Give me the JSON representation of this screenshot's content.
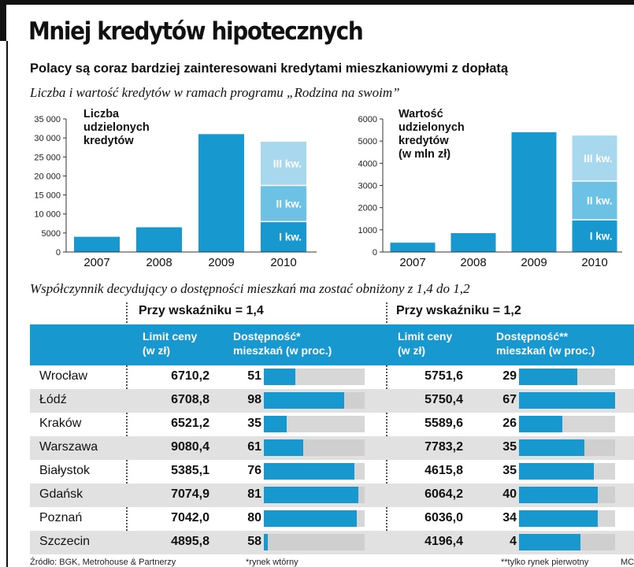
{
  "title": "Mniej kredytów hipotecznych",
  "subtitle": "Polacy są coraz bardziej zainteresowani kredytami mieszkaniowymi z dopłatą",
  "charts_heading": "Liczba i wartość kredytów w ramach programu „Rodzina na swoim”",
  "chart_data": [
    {
      "type": "bar",
      "label_lines": [
        "Liczba",
        "udzielonych",
        "kredytów"
      ],
      "categories": [
        "2007",
        "2008",
        "2009",
        "2010"
      ],
      "values": [
        4000,
        6500,
        31000,
        29000
      ],
      "stack_2010": {
        "segments": [
          {
            "name": "I kw.",
            "value": 8000
          },
          {
            "name": "II kw.",
            "value": 9500
          },
          {
            "name": "III kw.",
            "value": 11500
          }
        ]
      },
      "ylim": [
        0,
        35000
      ],
      "yticks": [
        0,
        5000,
        10000,
        15000,
        20000,
        25000,
        30000,
        35000
      ],
      "ytick_labels": [
        "0",
        "5000",
        "10 000",
        "15 000",
        "20 000",
        "25 000",
        "30 000",
        "35 000"
      ]
    },
    {
      "type": "bar",
      "label_lines": [
        "Wartość",
        "udzielonych",
        "kredytów",
        "(w mln zł)"
      ],
      "categories": [
        "2007",
        "2008",
        "2009",
        "2010"
      ],
      "values": [
        420,
        850,
        5400,
        5250
      ],
      "stack_2010": {
        "segments": [
          {
            "name": "I kw.",
            "value": 1450
          },
          {
            "name": "II kw.",
            "value": 1750
          },
          {
            "name": "III kw.",
            "value": 2050
          }
        ]
      },
      "ylim": [
        0,
        6000
      ],
      "yticks": [
        0,
        1000,
        2000,
        3000,
        4000,
        5000,
        6000
      ],
      "ytick_labels": [
        "0",
        "1000",
        "2000",
        "3000",
        "4000",
        "5000",
        "6000"
      ]
    },
    {
      "type": "table",
      "heading": "Współczynnik decydujący o dostępności mieszkań ma zostać obniżony z 1,4 do 1,2",
      "group_1": "Przy wskaźniku = 1,4",
      "group_2": "Przy wskaźniku = 1,2",
      "col_limit": [
        "Limit ceny",
        "(w zł)"
      ],
      "col_access_1": [
        "Dostępność*",
        "mieszkań (w proc.)"
      ],
      "col_access_2": [
        "Dostępność**",
        "mieszkań (w proc.)"
      ],
      "rows": [
        {
          "city": "Wrocław",
          "limit_14": "6710,2",
          "access_14": 51,
          "limit_12": "5751,6",
          "access_12": 29
        },
        {
          "city": "Łódź",
          "limit_14": "6708,8",
          "access_14": 98,
          "limit_12": "5750,4",
          "access_12": 67
        },
        {
          "city": "Kraków",
          "limit_14": "6521,2",
          "access_14": 35,
          "limit_12": "5589,6",
          "access_12": 26
        },
        {
          "city": "Warszawa",
          "limit_14": "9080,4",
          "access_14": 61,
          "limit_12": "7783,2",
          "access_12": 35
        },
        {
          "city": "Białystok",
          "limit_14": "5385,1",
          "access_14": 76,
          "limit_12": "4615,8",
          "access_12": 35
        },
        {
          "city": "Gdańsk",
          "limit_14": "7074,9",
          "access_14": 81,
          "limit_12": "6064,2",
          "access_12": 40
        },
        {
          "city": "Poznań",
          "limit_14": "7042,0",
          "access_14": 80,
          "limit_12": "6036,0",
          "access_12": 34
        },
        {
          "city": "Szczecin",
          "limit_14": "4895,8",
          "access_14": 58,
          "limit_12": "4196,4",
          "access_12": 4
        }
      ],
      "bar_fill_fraction_14": [
        0.31,
        0.8,
        0.23,
        0.39,
        0.9,
        0.94,
        0.92,
        0.04
      ],
      "bar_fill_fraction_12": [
        0.61,
        1.0,
        0.45,
        0.68,
        0.78,
        0.82,
        0.82,
        0.64
      ]
    }
  ],
  "colors": {
    "bar": "#1798cf",
    "q1": "#1798cf",
    "q2": "#6cc2e4",
    "q3": "#a7d8ee",
    "table_header": "#1798cf",
    "row_shade": "#e1e1e1",
    "bar_track": "#d7d7d7"
  },
  "footer": {
    "source": "Źródło: BGK, Metrohouse & Partnerzy",
    "note_1": "*rynek wtórny",
    "note_2": "**tylko rynek pierwotny",
    "credit": "MC"
  }
}
